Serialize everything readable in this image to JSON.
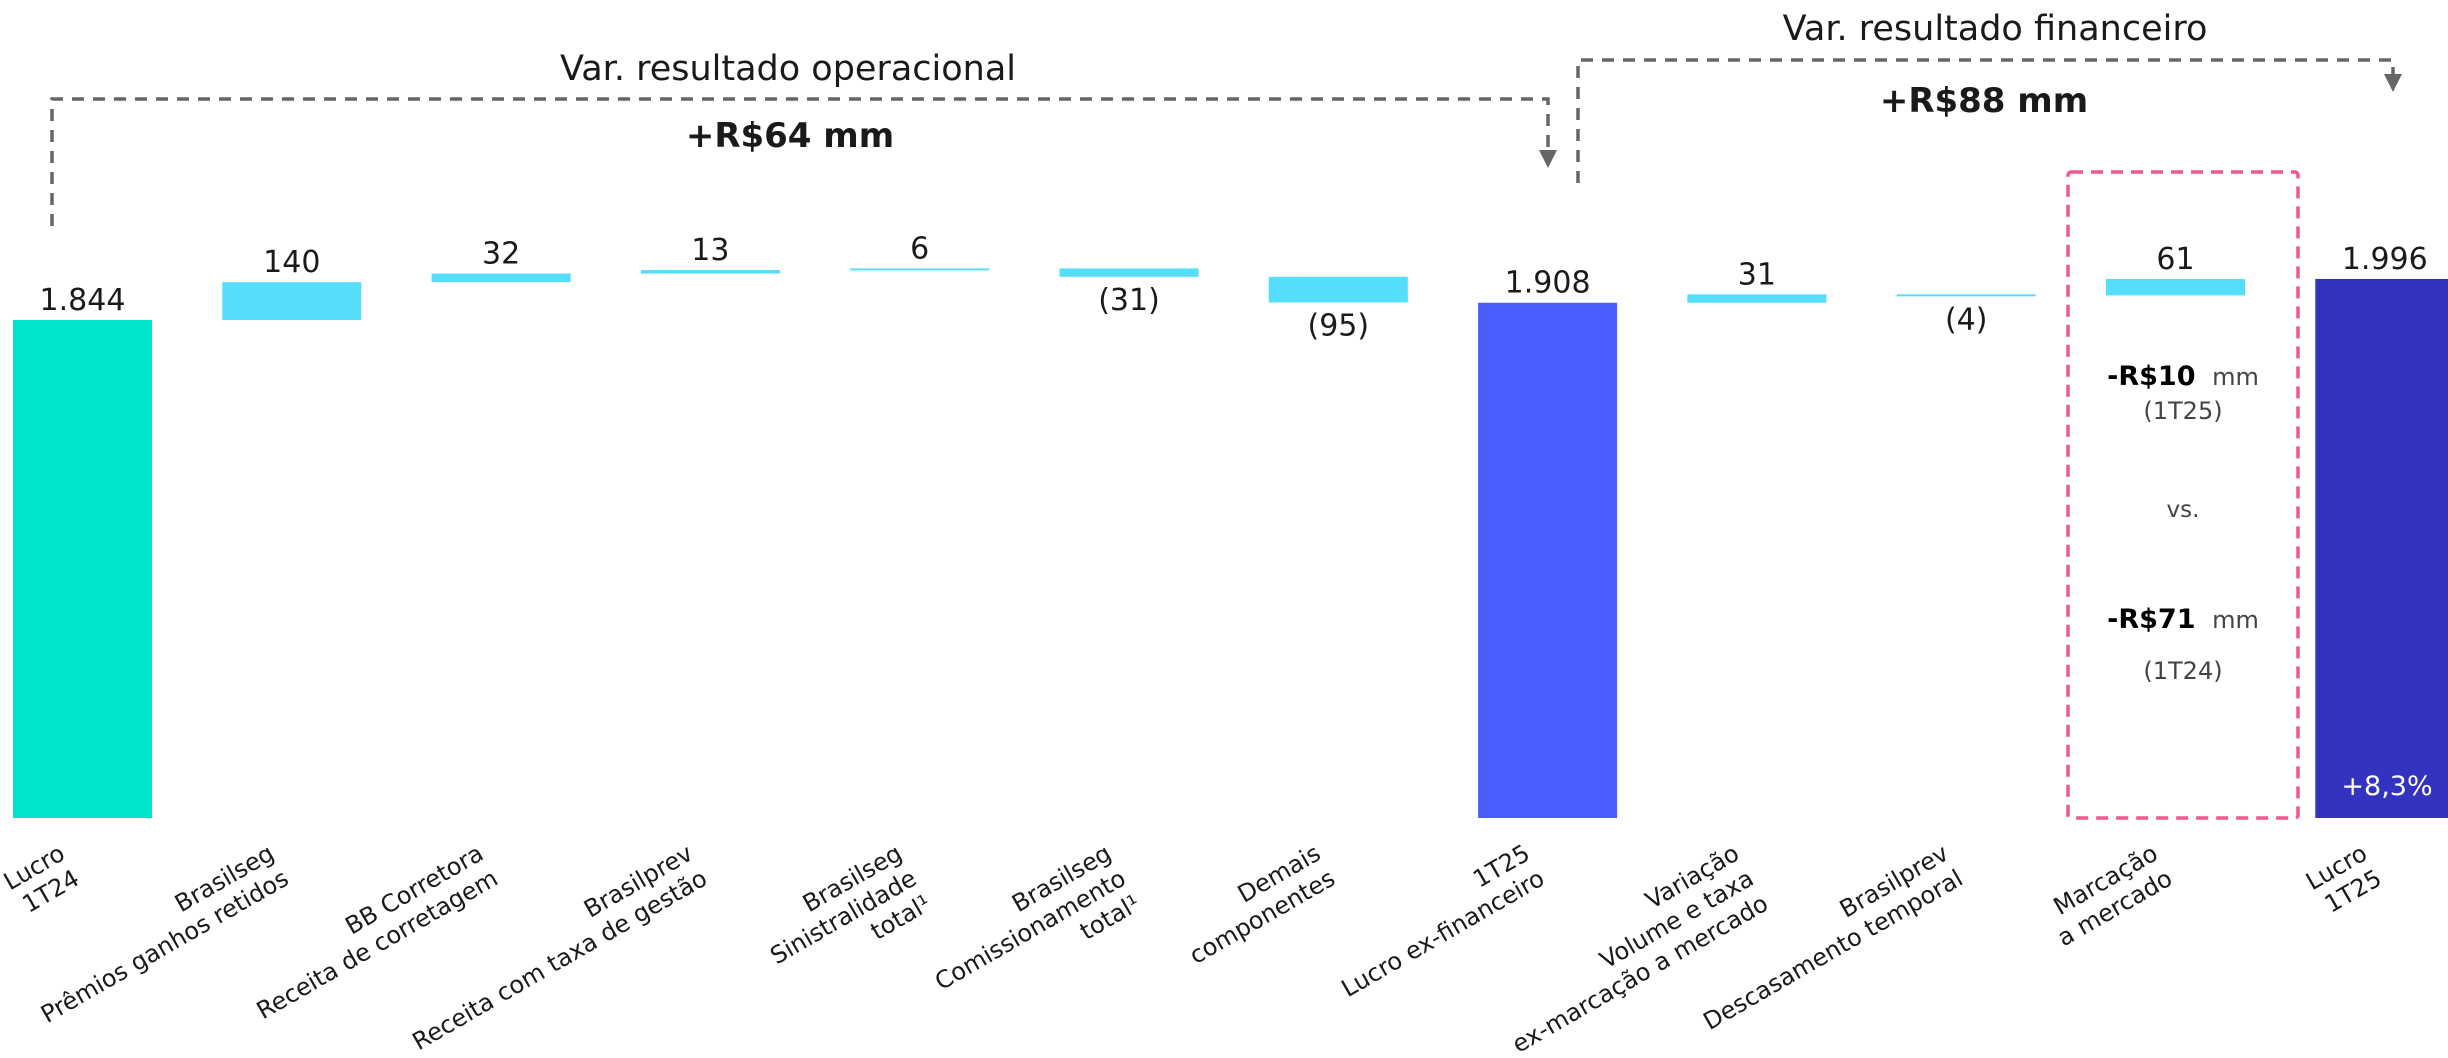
{
  "chart_data": {
    "type": "bar",
    "subtype": "waterfall",
    "categories": [
      [
        "Lucro",
        "1T24"
      ],
      [
        "Brasilseg",
        "Prêmios ganhos retidos"
      ],
      [
        "BB Corretora",
        "Receita de corretagem"
      ],
      [
        "Brasilprev",
        "Receita com taxa de gestão"
      ],
      [
        "Brasilseg",
        "Sinistralidade",
        "total¹"
      ],
      [
        "Brasilseg",
        "Comissionamento",
        "total¹"
      ],
      [
        "Demais",
        "componentes"
      ],
      [
        "1T25",
        "Lucro ex-financeiro"
      ],
      [
        "Variação",
        "Volume e taxa",
        "ex-marcação a mercado"
      ],
      [
        "Brasilprev",
        "Descasamento temporal"
      ],
      [
        "Marcação",
        "a mercado"
      ],
      [
        "Lucro",
        "1T25"
      ]
    ],
    "values": [
      1844,
      140,
      32,
      13,
      6,
      -31,
      -95,
      1908,
      31,
      -4,
      61,
      1996
    ],
    "kinds": [
      "total",
      "delta",
      "delta",
      "delta",
      "delta",
      "delta",
      "delta",
      "total",
      "delta",
      "delta",
      "delta",
      "total"
    ],
    "value_labels": [
      "1.844",
      "140",
      "32",
      "13",
      "6",
      "(31)",
      "(95)",
      "1.908",
      "31",
      "(4)",
      "61",
      "1.996"
    ],
    "colors": {
      "start_total": "#00E5CC",
      "delta": "#55DDFC",
      "mid_total": "#4A5DFF",
      "end_total": "#3333C0",
      "bracket": "#666666",
      "highlight_box": "#EE5A88"
    },
    "growth_label": "+8,3%",
    "brackets": [
      {
        "title": "Var. resultado operacional",
        "value": "+R$64 mm"
      },
      {
        "title": "Var. resultado financeiro",
        "value": "+R$88 mm"
      }
    ],
    "mtm_note": {
      "line1_bold": "-R$10",
      "line1_unit": "mm",
      "line1_period": "(1T25)",
      "vs": "vs.",
      "line2_bold": "-R$71",
      "line2_unit": "mm",
      "line2_period": "(1T24)"
    }
  }
}
